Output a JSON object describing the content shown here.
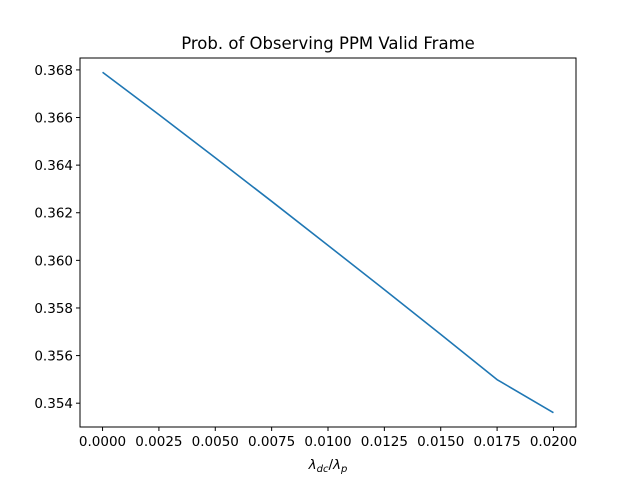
{
  "chart_data": {
    "type": "line",
    "title": "Prob. of Observing PPM Valid Frame",
    "xlabel": "λdc/λp",
    "xlabel_parts": {
      "main1": "λ",
      "sub1": "dc",
      "slash": "/",
      "main2": "λ",
      "sub2": "p"
    },
    "ylabel": "",
    "xlim": [
      -0.001,
      0.021
    ],
    "ylim": [
      0.353,
      0.3685
    ],
    "x_ticks": [
      0.0,
      0.0025,
      0.005,
      0.0075,
      0.01,
      0.0125,
      0.015,
      0.0175,
      0.02
    ],
    "x_tick_labels": [
      "0.0000",
      "0.0025",
      "0.0050",
      "0.0075",
      "0.0100",
      "0.0125",
      "0.0150",
      "0.0175",
      "0.0200"
    ],
    "y_ticks": [
      0.354,
      0.356,
      0.358,
      0.36,
      0.362,
      0.364,
      0.366,
      0.368
    ],
    "y_tick_labels": [
      "0.354",
      "0.356",
      "0.358",
      "0.360",
      "0.362",
      "0.364",
      "0.366",
      "0.368"
    ],
    "grid": false,
    "series": [
      {
        "color": "#1f77b4",
        "x": [
          0.0,
          0.0025,
          0.005,
          0.0075,
          0.01,
          0.0125,
          0.015,
          0.0175,
          0.02
        ],
        "y": [
          0.3679,
          0.36612,
          0.36431,
          0.36248,
          0.36063,
          0.35877,
          0.35689,
          0.35499,
          0.3536
        ]
      }
    ]
  }
}
